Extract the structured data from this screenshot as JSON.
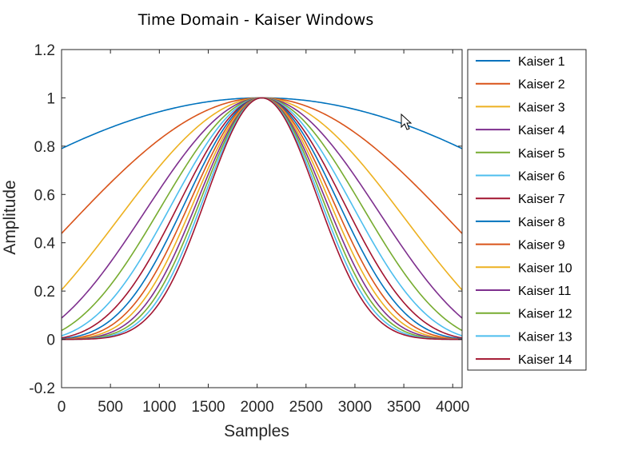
{
  "chart_data": {
    "type": "line",
    "title": "Time Domain - Kaiser Windows",
    "xlabel": "Samples",
    "ylabel": "Amplitude",
    "xlim": [
      0,
      4096
    ],
    "ylim": [
      -0.2,
      1.2
    ],
    "xticks": [
      0,
      500,
      1000,
      1500,
      2000,
      2500,
      3000,
      3500,
      4000
    ],
    "yticks": [
      -0.2,
      0,
      0.2,
      0.4,
      0.6,
      0.8,
      1,
      1.2
    ],
    "xtick_labels": [
      "0",
      "500",
      "1000",
      "1500",
      "2000",
      "2500",
      "3000",
      "3500",
      "4000"
    ],
    "ytick_labels": [
      "-0.2",
      "0",
      "0.2",
      "0.4",
      "0.6",
      "0.8",
      "1",
      "1.2"
    ],
    "grid": false,
    "legend_position": "outside-right",
    "window_length": 4096,
    "series": [
      {
        "name": "Kaiser 1",
        "beta": 1,
        "color": "#0072BD"
      },
      {
        "name": "Kaiser 2",
        "beta": 2,
        "color": "#D95319"
      },
      {
        "name": "Kaiser 3",
        "beta": 3,
        "color": "#EDB120"
      },
      {
        "name": "Kaiser 4",
        "beta": 4,
        "color": "#7E2F8E"
      },
      {
        "name": "Kaiser 5",
        "beta": 5,
        "color": "#77AC30"
      },
      {
        "name": "Kaiser 6",
        "beta": 6,
        "color": "#4DBEEE"
      },
      {
        "name": "Kaiser 7",
        "beta": 7,
        "color": "#A2142F"
      },
      {
        "name": "Kaiser 8",
        "beta": 8,
        "color": "#0072BD"
      },
      {
        "name": "Kaiser 9",
        "beta": 9,
        "color": "#D95319"
      },
      {
        "name": "Kaiser 10",
        "beta": 10,
        "color": "#EDB120"
      },
      {
        "name": "Kaiser 11",
        "beta": 11,
        "color": "#7E2F8E"
      },
      {
        "name": "Kaiser 12",
        "beta": 12,
        "color": "#77AC30"
      },
      {
        "name": "Kaiser 13",
        "beta": 13,
        "color": "#4DBEEE"
      },
      {
        "name": "Kaiser 14",
        "beta": 14,
        "color": "#A2142F"
      }
    ]
  }
}
